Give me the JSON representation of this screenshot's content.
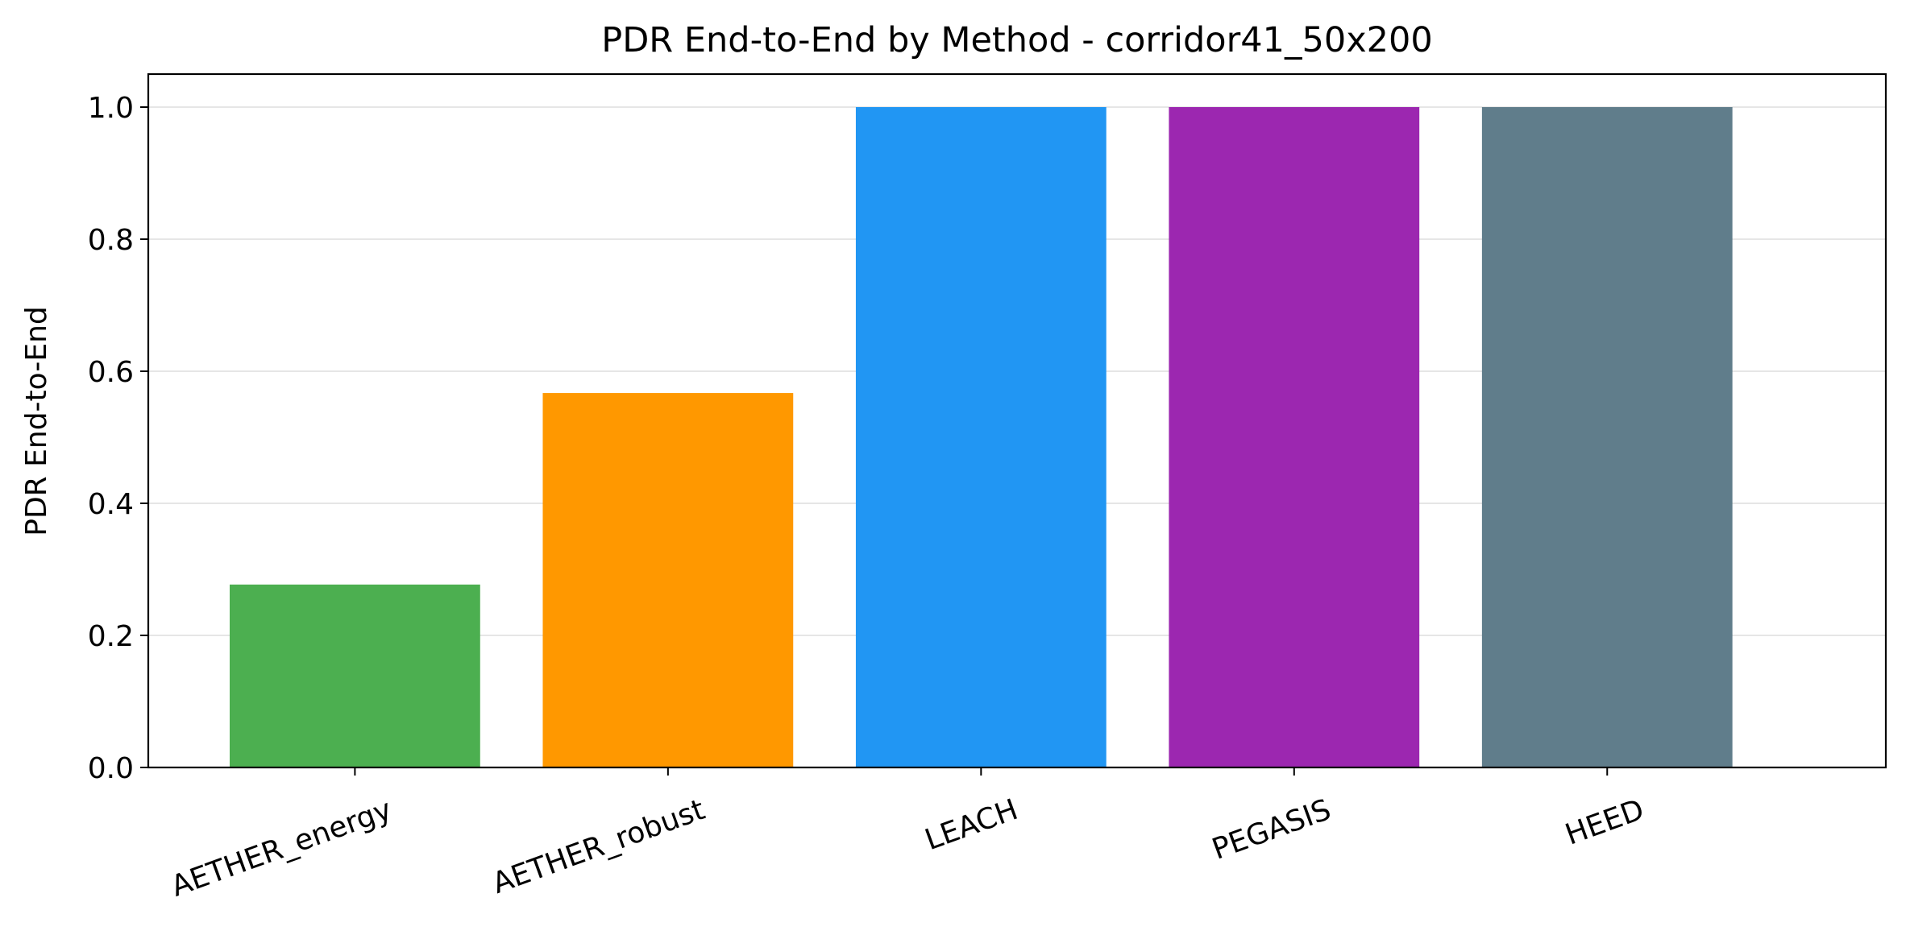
{
  "chart_data": {
    "type": "bar",
    "title": "PDR End-to-End by Method - corridor41_50x200",
    "xlabel": "",
    "ylabel": "PDR End-to-End",
    "categories": [
      "AETHER_energy",
      "AETHER_robust",
      "LEACH",
      "PEGASIS",
      "HEED"
    ],
    "values": [
      0.277,
      0.567,
      1.0,
      1.0,
      1.0
    ],
    "colors": [
      "#4caf50",
      "#ff9800",
      "#2196f3",
      "#9c27b0",
      "#607d8b"
    ],
    "ylim": [
      0,
      1.05
    ],
    "yticks": [
      "0.0",
      "0.2",
      "0.4",
      "0.6",
      "0.8",
      "1.0"
    ],
    "grid": "y",
    "legend": "none"
  }
}
